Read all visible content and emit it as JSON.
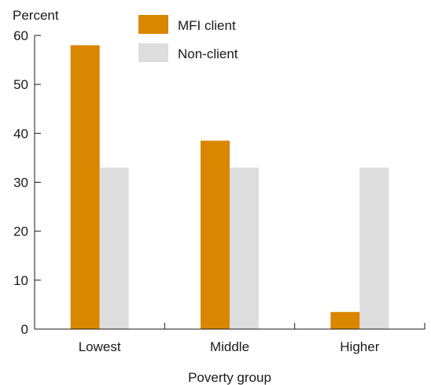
{
  "chart_data": {
    "type": "bar",
    "ylabel": "Percent",
    "xlabel": "Poverty group",
    "ylim": [
      0,
      60
    ],
    "yticks": [
      0,
      10,
      20,
      30,
      40,
      50,
      60
    ],
    "categories": [
      "Lowest",
      "Middle",
      "Higher"
    ],
    "series": [
      {
        "name": "MFI client",
        "color": "#d98600",
        "values": [
          58,
          38.5,
          3.5
        ]
      },
      {
        "name": "Non-client",
        "color": "#dddddd",
        "values": [
          33,
          33,
          33
        ]
      }
    ],
    "grid": false,
    "legend_position": "top-center"
  }
}
